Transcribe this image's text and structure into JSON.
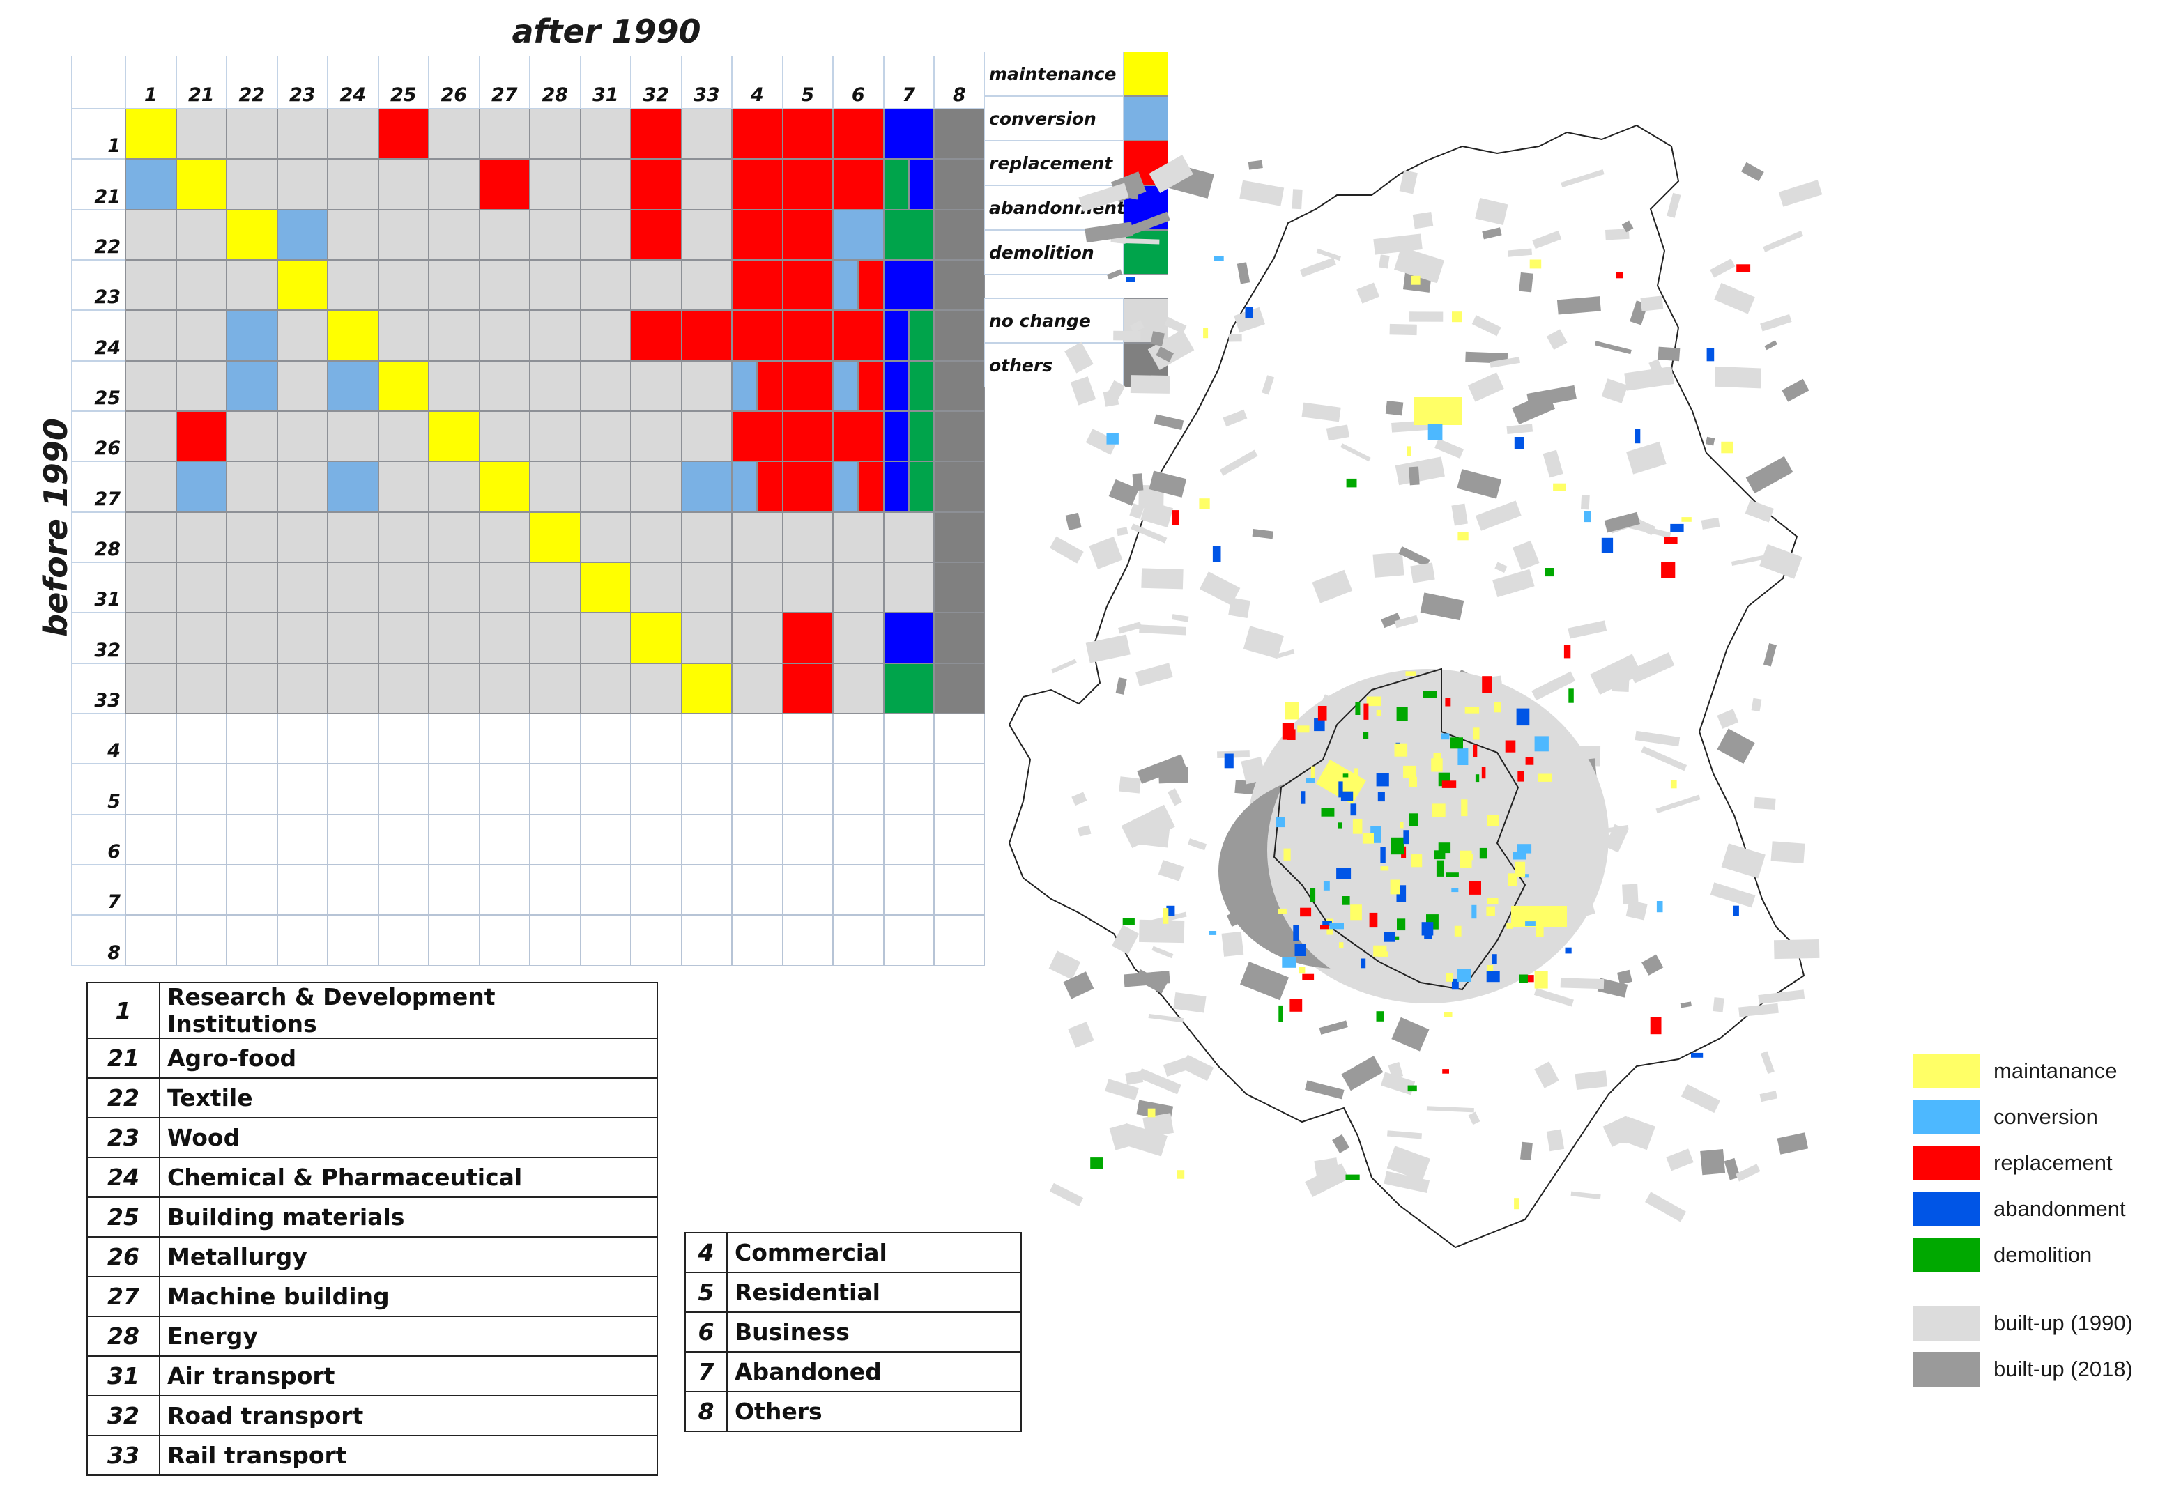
{
  "matrix": {
    "column_axis_title": "after 1990",
    "row_axis_title": "before 1990",
    "column_codes": [
      "1",
      "21",
      "22",
      "23",
      "24",
      "25",
      "26",
      "27",
      "28",
      "31",
      "32",
      "33",
      "4",
      "5",
      "6",
      "7",
      "8"
    ],
    "row_codes": [
      "1",
      "21",
      "22",
      "23",
      "24",
      "25",
      "26",
      "27",
      "28",
      "31",
      "32",
      "33",
      "4",
      "5",
      "6",
      "7",
      "8"
    ],
    "cells": [
      [
        "M",
        "N",
        "N",
        "N",
        "N",
        "R",
        "N",
        "N",
        "N",
        "N",
        "R",
        "N",
        "R",
        "R",
        "R",
        "A",
        "O"
      ],
      [
        "C",
        "M",
        "N",
        "N",
        "N",
        "N",
        "N",
        "R",
        "N",
        "N",
        "R",
        "N",
        "R",
        "R",
        "R",
        "D|A",
        "O"
      ],
      [
        "N",
        "N",
        "M",
        "C",
        "N",
        "N",
        "N",
        "N",
        "N",
        "N",
        "R",
        "N",
        "R",
        "R",
        "C",
        "D",
        "O"
      ],
      [
        "N",
        "N",
        "N",
        "M",
        "N",
        "N",
        "N",
        "N",
        "N",
        "N",
        "N",
        "N",
        "R",
        "R",
        "C|R",
        "A",
        "O"
      ],
      [
        "N",
        "N",
        "C",
        "N",
        "M",
        "N",
        "N",
        "N",
        "N",
        "N",
        "R",
        "R",
        "R",
        "R",
        "R",
        "A|D",
        "O"
      ],
      [
        "N",
        "N",
        "C",
        "N",
        "C",
        "M",
        "N",
        "N",
        "N",
        "N",
        "N",
        "N",
        "C|R",
        "R",
        "C|R",
        "A|D",
        "O"
      ],
      [
        "N",
        "R",
        "N",
        "N",
        "N",
        "N",
        "M",
        "N",
        "N",
        "N",
        "N",
        "N",
        "R",
        "R",
        "R",
        "A|D",
        "O"
      ],
      [
        "N",
        "C",
        "N",
        "N",
        "C",
        "N",
        "N",
        "M",
        "N",
        "N",
        "N",
        "C",
        "C|R",
        "R",
        "C|R",
        "A|D",
        "O"
      ],
      [
        "N",
        "N",
        "N",
        "N",
        "N",
        "N",
        "N",
        "N",
        "M",
        "N",
        "N",
        "N",
        "N",
        "N",
        "N",
        "N",
        "O"
      ],
      [
        "N",
        "N",
        "N",
        "N",
        "N",
        "N",
        "N",
        "N",
        "N",
        "M",
        "N",
        "N",
        "N",
        "N",
        "N",
        "N",
        "O"
      ],
      [
        "N",
        "N",
        "N",
        "N",
        "N",
        "N",
        "N",
        "N",
        "N",
        "N",
        "M",
        "N",
        "N",
        "R",
        "N",
        "A",
        "O"
      ],
      [
        "N",
        "N",
        "N",
        "N",
        "N",
        "N",
        "N",
        "N",
        "N",
        "N",
        "N",
        "M",
        "N",
        "R",
        "N",
        "D",
        "O"
      ],
      [
        "",
        "",
        "",
        "",
        "",
        "",
        "",
        "",
        "",
        "",
        "",
        "",
        "",
        "",
        "",
        "",
        ""
      ],
      [
        "",
        "",
        "",
        "",
        "",
        "",
        "",
        "",
        "",
        "",
        "",
        "",
        "",
        "",
        "",
        "",
        ""
      ],
      [
        "",
        "",
        "",
        "",
        "",
        "",
        "",
        "",
        "",
        "",
        "",
        "",
        "",
        "",
        "",
        "",
        ""
      ],
      [
        "",
        "",
        "",
        "",
        "",
        "",
        "",
        "",
        "",
        "",
        "",
        "",
        "",
        "",
        "",
        "",
        ""
      ],
      [
        "",
        "",
        "",
        "",
        "",
        "",
        "",
        "",
        "",
        "",
        "",
        "",
        "",
        "",
        "",
        "",
        ""
      ]
    ],
    "cell_colors": {
      "M": "#ffff00",
      "C": "#7ab1e4",
      "R": "#ff0000",
      "A": "#0000ff",
      "D": "#00a44b",
      "N": "#d9d9d9",
      "O": "#808080"
    },
    "legend": [
      {
        "key": "M",
        "label": "maintenance"
      },
      {
        "key": "C",
        "label": "conversion"
      },
      {
        "key": "R",
        "label": "replacement"
      },
      {
        "key": "A",
        "label": "abandonment"
      },
      {
        "key": "D",
        "label": "demolition"
      },
      {
        "key": "N",
        "label": "no change"
      },
      {
        "key": "O",
        "label": "others"
      }
    ]
  },
  "industry_table": [
    {
      "code": "1",
      "name": "Research & Development Institutions"
    },
    {
      "code": "21",
      "name": "Agro-food"
    },
    {
      "code": "22",
      "name": "Textile"
    },
    {
      "code": "23",
      "name": "Wood"
    },
    {
      "code": "24",
      "name": "Chemical & Pharmaceutical"
    },
    {
      "code": "25",
      "name": "Building materials"
    },
    {
      "code": "26",
      "name": "Metallurgy"
    },
    {
      "code": "27",
      "name": "Machine building"
    },
    {
      "code": "28",
      "name": "Energy"
    },
    {
      "code": "31",
      "name": "Air transport"
    },
    {
      "code": "32",
      "name": "Road transport"
    },
    {
      "code": "33",
      "name": "Rail transport"
    }
  ],
  "use_table": [
    {
      "code": "4",
      "name": "Commercial"
    },
    {
      "code": "5",
      "name": "Residential"
    },
    {
      "code": "6",
      "name": "Business"
    },
    {
      "code": "7",
      "name": "Abandoned"
    },
    {
      "code": "8",
      "name": "Others"
    }
  ],
  "map_legend": [
    {
      "label": "maintanance",
      "color": "#ffff66"
    },
    {
      "label": "conversion",
      "color": "#4db8ff"
    },
    {
      "label": "replacement",
      "color": "#ff0000"
    },
    {
      "label": "abandonment",
      "color": "#0055e6"
    },
    {
      "label": "demolition",
      "color": "#00a800"
    },
    {
      "label": "built-up (1990)",
      "color": "#dcdcdc"
    },
    {
      "label": "built-up (2018)",
      "color": "#9a9a9a"
    }
  ]
}
